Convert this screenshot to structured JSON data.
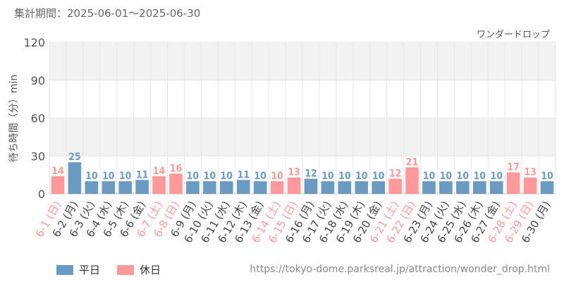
{
  "header": {
    "period": "集計期間：2025-06-01～2025-06-30",
    "attraction": "ワンダードロップ"
  },
  "colors": {
    "weekday": "#6b9bc3",
    "holiday": "#ff9999",
    "grid_band": "#f2f2f2",
    "grid_line": "#e6e6e6",
    "axis_text": "#555555"
  },
  "legend": {
    "weekday_label": "平日",
    "holiday_label": "休日"
  },
  "source_url": "https://tokyo-dome.parksreal.jp/attraction/wonder_drop.html",
  "chart_data": {
    "type": "bar",
    "ylabel": "待ち時間（分）min",
    "ylim": [
      0,
      120
    ],
    "yticks": [
      0,
      30,
      60,
      90,
      120
    ],
    "grid": true,
    "legend_position": "bottom-left",
    "categories": [
      "6-1 (日)",
      "6-2 (月)",
      "6-3 (火)",
      "6-4 (水)",
      "6-5 (木)",
      "6-6 (金)",
      "6-7 (土)",
      "6-8 (日)",
      "6-9 (月)",
      "6-10 (火)",
      "6-11 (水)",
      "6-12 (木)",
      "6-13 (金)",
      "6-14 (土)",
      "6-15 (日)",
      "6-16 (月)",
      "6-17 (火)",
      "6-18 (水)",
      "6-19 (木)",
      "6-20 (金)",
      "6-21 (土)",
      "6-22 (日)",
      "6-23 (月)",
      "6-24 (火)",
      "6-25 (水)",
      "6-26 (木)",
      "6-27 (金)",
      "6-28 (土)",
      "6-29 (日)",
      "6-30 (月)"
    ],
    "values": [
      14,
      25,
      10,
      10,
      10,
      11,
      14,
      16,
      10,
      10,
      10,
      11,
      10,
      10,
      13,
      12,
      10,
      10,
      10,
      10,
      12,
      21,
      10,
      10,
      10,
      10,
      10,
      17,
      13,
      10
    ],
    "holiday": [
      true,
      false,
      false,
      false,
      false,
      false,
      true,
      true,
      false,
      false,
      false,
      false,
      false,
      true,
      true,
      false,
      false,
      false,
      false,
      false,
      true,
      true,
      false,
      false,
      false,
      false,
      false,
      true,
      true,
      false
    ]
  }
}
